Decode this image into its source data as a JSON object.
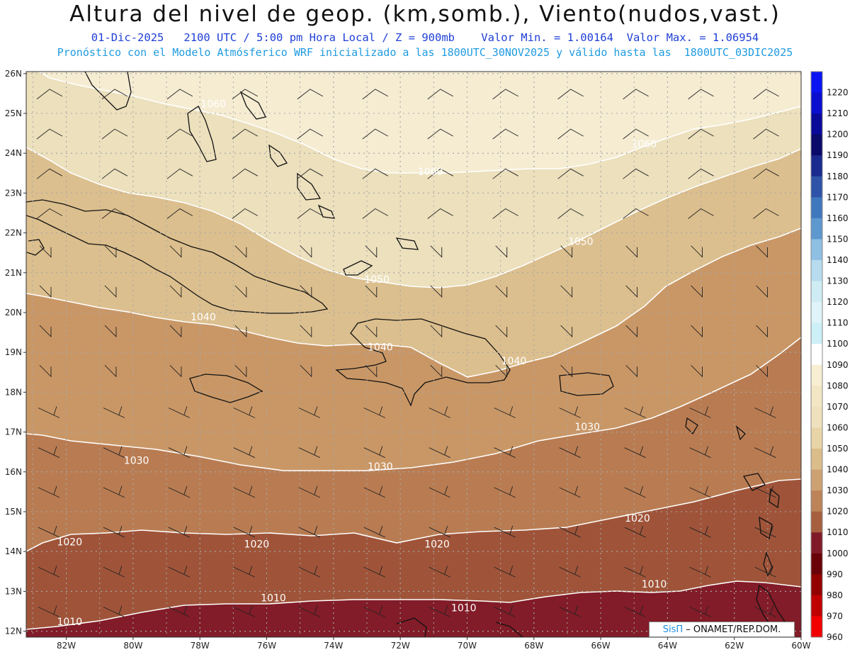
{
  "header": {
    "title": "Altura del nivel de geop. (km,somb.), Viento(nudos,vast.)",
    "line1": "01-Dic-2025   2100 UTC / 5:00 pm Hora Local / Z = 900mb    Valor Min. = 1.00164  Valor Max. = 1.06954",
    "line2": "Pronóstico con el Modelo Atmósferico WRF inicializado a las 1800UTC_30NOV2025 y válido hasta las  1800UTC_03DIC2025"
  },
  "map": {
    "lat_ticks": [
      "26N",
      "25N",
      "24N",
      "23N",
      "22N",
      "21N",
      "20N",
      "19N",
      "18N",
      "17N",
      "16N",
      "15N",
      "14N",
      "13N",
      "12N"
    ],
    "lon_ticks": [
      "82W",
      "80W",
      "78W",
      "76W",
      "74W",
      "72W",
      "70W",
      "68W",
      "66W",
      "64W",
      "62W",
      "60W"
    ],
    "contour_labels": [
      {
        "text": "1060",
        "lon": -77.6,
        "lat": 25.15
      },
      {
        "text": "1060",
        "lon": -64.7,
        "lat": 24.15
      },
      {
        "text": "1060",
        "lon": -71.1,
        "lat": 23.45
      },
      {
        "text": "1050",
        "lon": -66.6,
        "lat": 21.7
      },
      {
        "text": "1050",
        "lon": -72.7,
        "lat": 20.75
      },
      {
        "text": "1040",
        "lon": -77.9,
        "lat": 19.8
      },
      {
        "text": "1040",
        "lon": -72.6,
        "lat": 19.05
      },
      {
        "text": "1040",
        "lon": -68.6,
        "lat": 18.7
      },
      {
        "text": "1030",
        "lon": -66.4,
        "lat": 17.05
      },
      {
        "text": "1030",
        "lon": -79.9,
        "lat": 16.2
      },
      {
        "text": "1030",
        "lon": -72.6,
        "lat": 16.05
      },
      {
        "text": "1020",
        "lon": -81.9,
        "lat": 14.15
      },
      {
        "text": "1020",
        "lon": -76.3,
        "lat": 14.1
      },
      {
        "text": "1020",
        "lon": -70.9,
        "lat": 14.1
      },
      {
        "text": "1020",
        "lon": -64.9,
        "lat": 14.75
      },
      {
        "text": "1010",
        "lon": -75.8,
        "lat": 12.75
      },
      {
        "text": "1010",
        "lon": -70.1,
        "lat": 12.5
      },
      {
        "text": "1010",
        "lon": -64.4,
        "lat": 13.1
      },
      {
        "text": "1010",
        "lon": -81.9,
        "lat": 12.15
      }
    ],
    "wind_barb_note": "",
    "colors": {
      "h1060": "#f5ecd2",
      "h1050": "#ece0bd",
      "h1040": "#dcbf8e",
      "h1030": "#c99766",
      "h1020": "#b97c52",
      "h1010": "#9f5439",
      "h1000": "#821c28",
      "coast": "#111111",
      "contour": "#ffffff",
      "grid": "#a8a8a8"
    }
  },
  "colorbar": {
    "levels": [
      "1220",
      "1210",
      "1200",
      "1190",
      "1180",
      "1170",
      "1160",
      "1150",
      "1140",
      "1130",
      "1120",
      "1110",
      "1100",
      "1090",
      "1080",
      "1070",
      "1060",
      "1050",
      "1040",
      "1030",
      "1020",
      "1010",
      "1000",
      "990",
      "980",
      "970",
      "960"
    ],
    "colors": [
      "#0a14f2",
      "#0a0fcf",
      "#0a0a9a",
      "#0a0a6a",
      "#1a2a8f",
      "#2e53a8",
      "#3f78bd",
      "#5d98cf",
      "#8fbfe3",
      "#b6dcee",
      "#cfecf4",
      "#dff4f8",
      "#cdeff7",
      "#ffffff",
      "#f7eed3",
      "#f3e6c4",
      "#efe1bd",
      "#e8d4a6",
      "#dbbd8a",
      "#cda171",
      "#bd8459",
      "#a7603f",
      "#801a28",
      "#6a0008",
      "#930000",
      "#c00000",
      "#f20000"
    ]
  },
  "credit": {
    "sis": "SisΠ",
    "text": " – ONAMET/REP.DOM."
  }
}
